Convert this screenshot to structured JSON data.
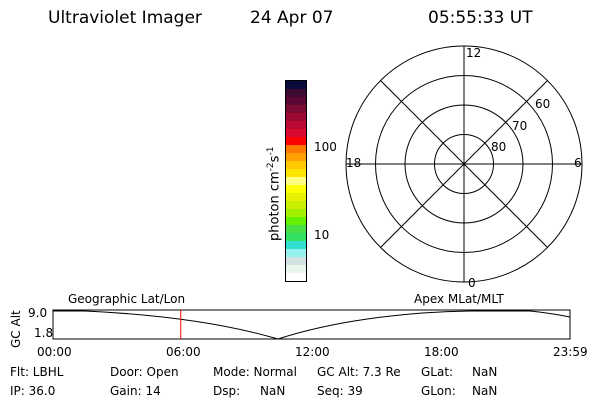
{
  "header": {
    "instrument": "Ultraviolet Imager",
    "date": "24 Apr 07",
    "time": "05:55:33 UT"
  },
  "colorbar": {
    "label": "photon cm",
    "exp1": "-2",
    "mid": "s",
    "exp2": "-1",
    "ticks": [
      "100",
      "10"
    ],
    "colors": [
      "#0a0a3c",
      "#3c0a32",
      "#5a0a32",
      "#7d0a32",
      "#9a0a32",
      "#b80a32",
      "#d80a32",
      "#ff0000",
      "#ff7800",
      "#ffa000",
      "#ffc800",
      "#ffe600",
      "#ffff80",
      "#ffff00",
      "#e6f000",
      "#c8f000",
      "#a0f000",
      "#64f000",
      "#46e046",
      "#32e064",
      "#32e0d2",
      "#96f0f0",
      "#d2e2e2",
      "#e8f4ec",
      "#ffffff"
    ]
  },
  "polar": {
    "mlt_labels": {
      "top": "12",
      "left": "18",
      "right": "6",
      "bottom": "0"
    },
    "lat_labels": [
      "60",
      "70",
      "80"
    ]
  },
  "timeline": {
    "left_label": "Geographic Lat/Lon",
    "right_label": "Apex MLat/MLT",
    "ylabel": "GC Alt",
    "ymax": "9.0",
    "ymin": "1.8",
    "xticks": [
      "00:00",
      "06:00",
      "12:00",
      "18:00",
      "23:59"
    ],
    "current_time_hours": 5.93,
    "marker_color": "#ff0000"
  },
  "status": {
    "flt": "Flt: LBHL",
    "ip": "IP: 36.0",
    "door": "Door: Open",
    "gain": "Gain: 14",
    "mode": "Mode: Normal",
    "dsp_label": "Dsp:",
    "dsp_value": "NaN",
    "gcalt": "GC Alt: 7.3 Re",
    "seq": "Seq: 39",
    "glat_label": "GLat:",
    "glat_value": "NaN",
    "glon_label": "GLon:",
    "glon_value": "NaN"
  }
}
